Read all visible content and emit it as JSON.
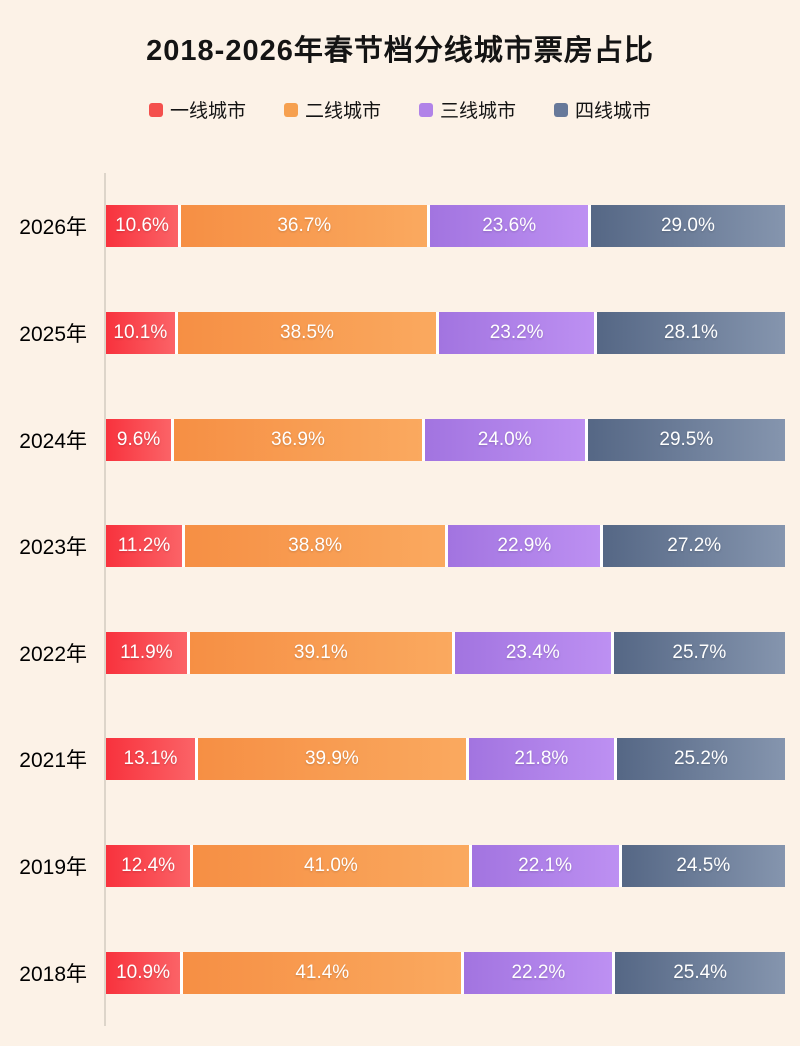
{
  "title": "2018-2026年春节档分线城市票房占比",
  "legend": {
    "items": [
      {
        "label": "一线城市",
        "color": "#f4504d"
      },
      {
        "label": "二线城市",
        "color": "#f6a04f"
      },
      {
        "label": "三线城市",
        "color": "#b183e8"
      },
      {
        "label": "四线城市",
        "color": "#67799a"
      }
    ]
  },
  "colors": {
    "background": "#fcf2e7",
    "axis_line": "#ddd5ca",
    "separator": "#ffffff",
    "label_text": "#ffffff"
  },
  "chart_data": {
    "type": "bar",
    "orientation": "horizontal-stacked",
    "title": "2018-2026年春节档分线城市票房占比",
    "unit": "%",
    "xlim": [
      0,
      100
    ],
    "legend_position": "top-center",
    "grid": false,
    "categories": [
      "2026年",
      "2025年",
      "2024年",
      "2023年",
      "2022年",
      "2021年",
      "2019年",
      "2018年"
    ],
    "series": [
      {
        "name": "一线城市",
        "values": [
          10.6,
          10.1,
          9.6,
          11.2,
          11.9,
          13.1,
          12.4,
          10.9
        ],
        "gradient": [
          "#f8323d",
          "#fb6367"
        ]
      },
      {
        "name": "二线城市",
        "values": [
          36.7,
          38.5,
          36.9,
          38.8,
          39.1,
          39.9,
          41.0,
          41.4
        ],
        "gradient": [
          "#f68f44",
          "#faa95f"
        ]
      },
      {
        "name": "三线城市",
        "values": [
          23.6,
          23.2,
          24.0,
          22.9,
          23.4,
          21.8,
          22.1,
          22.2
        ],
        "gradient": [
          "#a274e0",
          "#bd90f2"
        ]
      },
      {
        "name": "四线城市",
        "values": [
          29.0,
          28.1,
          29.5,
          27.2,
          25.7,
          25.2,
          24.5,
          25.4
        ],
        "gradient": [
          "#556785",
          "#8595ae"
        ]
      }
    ],
    "value_labels": [
      [
        "10.6%",
        "36.7%",
        "23.6%",
        "29.0%"
      ],
      [
        "10.1%",
        "38.5%",
        "23.2%",
        "28.1%"
      ],
      [
        "9.6%",
        "36.9%",
        "24.0%",
        "29.5%"
      ],
      [
        "11.2%",
        "38.8%",
        "22.9%",
        "27.2%"
      ],
      [
        "11.9%",
        "39.1%",
        "23.4%",
        "25.7%"
      ],
      [
        "13.1%",
        "39.9%",
        "21.8%",
        "25.2%"
      ],
      [
        "12.4%",
        "41.0%",
        "22.1%",
        "24.5%"
      ],
      [
        "10.9%",
        "41.4%",
        "22.2%",
        "25.4%"
      ]
    ]
  }
}
